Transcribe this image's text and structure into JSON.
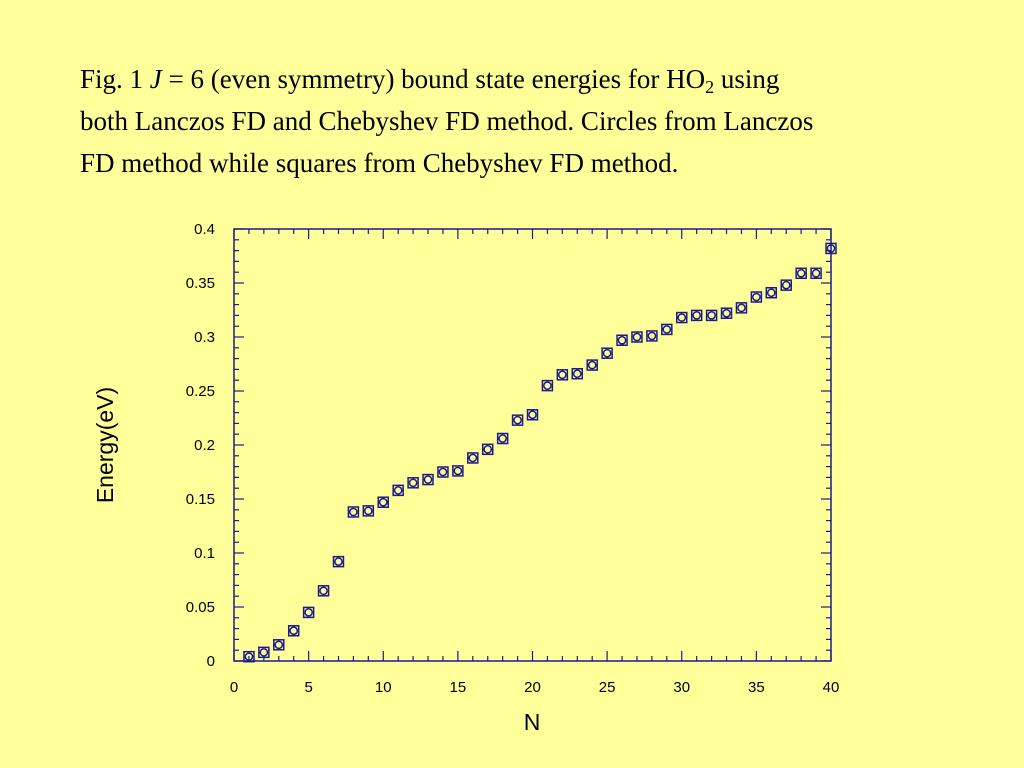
{
  "caption": {
    "line1_prefix": "Fig. 1 ",
    "line1_j": "J",
    "line1_mid": " = 6 (even symmetry) bound state energies for HO",
    "line1_sub": "2",
    "line1_suffix": " using",
    "line2": "both Lanczos FD and Chebyshev FD method. Circles from Lanczos",
    "line3": "FD method while squares from Chebyshev FD method."
  },
  "chart_data": {
    "type": "scatter",
    "xlabel": "N",
    "ylabel": "Energy(eV)",
    "xlim": [
      0,
      40
    ],
    "ylim": [
      0,
      0.4
    ],
    "xticks": [
      0,
      5,
      10,
      15,
      20,
      25,
      30,
      35,
      40
    ],
    "yticks": [
      0,
      0.05,
      0.1,
      0.15,
      0.2,
      0.25,
      0.3,
      0.35,
      0.4
    ],
    "xtick_labels": [
      "0",
      "5",
      "10",
      "15",
      "20",
      "25",
      "30",
      "35",
      "40"
    ],
    "ytick_labels": [
      "0",
      "0.05",
      "0.1",
      "0.15",
      "0.2",
      "0.25",
      "0.3",
      "0.35",
      "0.4"
    ],
    "grid": false,
    "marker_color": "#1a1a8c",
    "series": [
      {
        "marker": "circle",
        "x": [
          1,
          2,
          3,
          4,
          5,
          6,
          7,
          8,
          9,
          10,
          11,
          12,
          13,
          14,
          15,
          16,
          17,
          18,
          19,
          20,
          21,
          22,
          23,
          24,
          25,
          26,
          27,
          28,
          29,
          30,
          31,
          32,
          33,
          34,
          35,
          36,
          37,
          38,
          39,
          40
        ],
        "y": [
          0.004,
          0.008,
          0.015,
          0.028,
          0.045,
          0.065,
          0.092,
          0.138,
          0.139,
          0.147,
          0.158,
          0.165,
          0.168,
          0.175,
          0.176,
          0.188,
          0.196,
          0.206,
          0.223,
          0.228,
          0.255,
          0.265,
          0.266,
          0.274,
          0.285,
          0.297,
          0.3,
          0.301,
          0.307,
          0.318,
          0.32,
          0.32,
          0.322,
          0.327,
          0.337,
          0.341,
          0.348,
          0.359,
          0.359,
          0.382
        ]
      },
      {
        "marker": "square",
        "x": [
          1,
          2,
          3,
          4,
          5,
          6,
          7,
          8,
          9,
          10,
          11,
          12,
          13,
          14,
          15,
          16,
          17,
          18,
          19,
          20,
          21,
          22,
          23,
          24,
          25,
          26,
          27,
          28,
          29,
          30,
          31,
          32,
          33,
          34,
          35,
          36,
          37,
          38,
          39,
          40
        ],
        "y": [
          0.004,
          0.008,
          0.015,
          0.028,
          0.045,
          0.065,
          0.092,
          0.138,
          0.139,
          0.147,
          0.158,
          0.165,
          0.168,
          0.175,
          0.176,
          0.188,
          0.196,
          0.206,
          0.223,
          0.228,
          0.255,
          0.265,
          0.266,
          0.274,
          0.285,
          0.297,
          0.3,
          0.301,
          0.307,
          0.318,
          0.32,
          0.32,
          0.322,
          0.327,
          0.337,
          0.341,
          0.348,
          0.359,
          0.359,
          0.382
        ]
      }
    ]
  }
}
